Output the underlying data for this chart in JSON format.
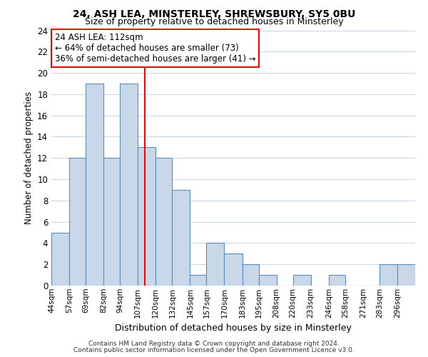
{
  "title": "24, ASH LEA, MINSTERLEY, SHREWSBURY, SY5 0BU",
  "subtitle": "Size of property relative to detached houses in Minsterley",
  "xlabel": "Distribution of detached houses by size in Minsterley",
  "ylabel": "Number of detached properties",
  "bar_color": "#c8d8e8",
  "bar_edge_color": "#5b8db8",
  "grid_color": "#c8d8e8",
  "vline_x": 112,
  "vline_color": "red",
  "annotation_title": "24 ASH LEA: 112sqm",
  "annotation_line1": "← 64% of detached houses are smaller (73)",
  "annotation_line2": "36% of semi-detached houses are larger (41) →",
  "footnote1": "Contains HM Land Registry data © Crown copyright and database right 2024.",
  "footnote2": "Contains public sector information licensed under the Open Government Licence v3.0.",
  "bin_labels": [
    "44sqm",
    "57sqm",
    "69sqm",
    "82sqm",
    "94sqm",
    "107sqm",
    "120sqm",
    "132sqm",
    "145sqm",
    "157sqm",
    "170sqm",
    "183sqm",
    "195sqm",
    "208sqm",
    "220sqm",
    "233sqm",
    "246sqm",
    "258sqm",
    "271sqm",
    "283sqm",
    "296sqm"
  ],
  "bin_edges": [
    44,
    57,
    69,
    82,
    94,
    107,
    120,
    132,
    145,
    157,
    170,
    183,
    195,
    208,
    220,
    233,
    246,
    258,
    271,
    283,
    296,
    309
  ],
  "counts": [
    5,
    12,
    19,
    12,
    19,
    13,
    12,
    9,
    1,
    4,
    3,
    2,
    1,
    0,
    1,
    0,
    1,
    0,
    0,
    2,
    2
  ],
  "ylim": [
    0,
    24
  ],
  "yticks": [
    0,
    2,
    4,
    6,
    8,
    10,
    12,
    14,
    16,
    18,
    20,
    22,
    24
  ]
}
